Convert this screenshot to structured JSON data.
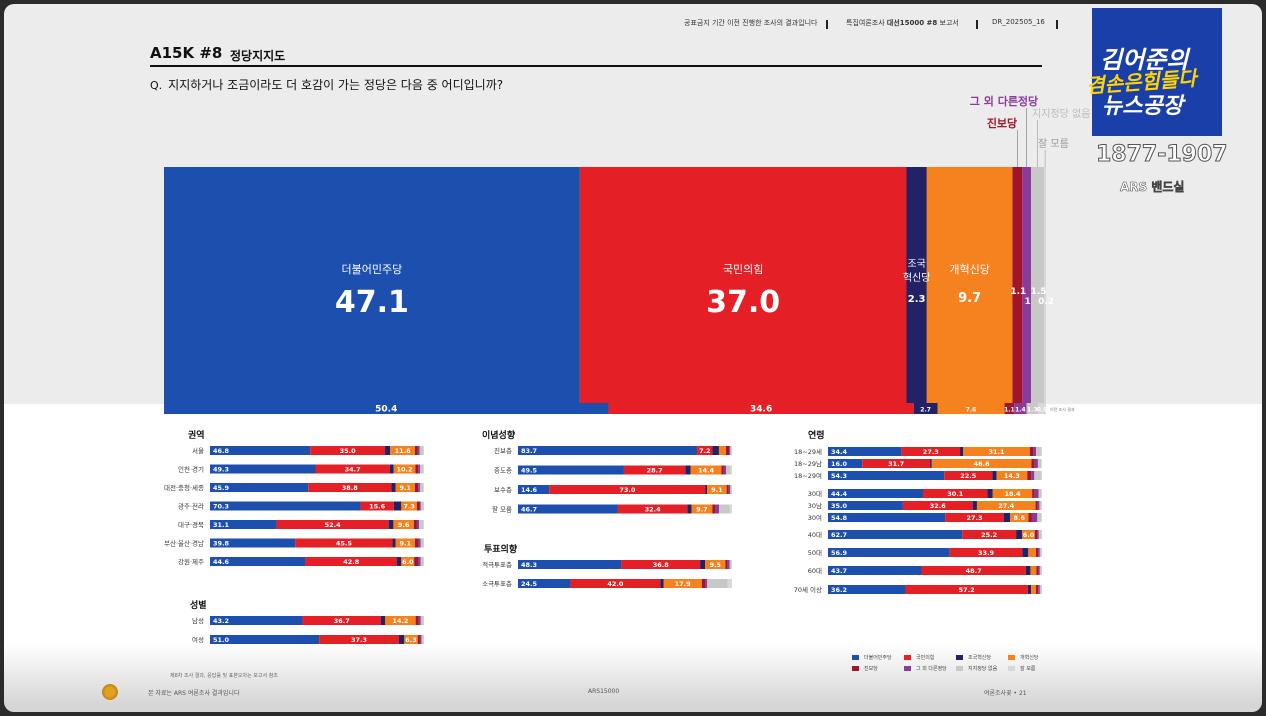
{
  "header": {
    "notice": "공표금지 기간 이전 진행한 조사의 결과입니다",
    "report_prefix": "특집여론조사 ",
    "report_name": "대선15000 #8",
    "report_suffix": " 보고서",
    "doc_id": "DR_202505_16"
  },
  "title": {
    "code": "A15K #8",
    "subject": "정당지지도"
  },
  "question": {
    "icon": "Q.",
    "text": "지지하거나 조금이라도 더 호감이 가는 정당은 다음 중 어디입니까?"
  },
  "colors": {
    "dem": "#1c4fae",
    "ppp": "#e41f26",
    "rebuild": "#222266",
    "reform": "#f5821f",
    "progressive": "#a1162a",
    "other": "#8b3a9a",
    "none": "#c8c8c8",
    "dk": "#d8d8d8"
  },
  "chart_data": [
    {
      "type": "bar",
      "subtype": "stacked-100",
      "series": [
        {
          "name": "더불어민주당",
          "value": 47.1,
          "color_key": "dem"
        },
        {
          "name": "국민의힘",
          "value": 37.0,
          "color_key": "ppp"
        },
        {
          "name": "조국혁신당",
          "value": 2.3,
          "color_key": "rebuild"
        },
        {
          "name": "개혁신당",
          "value": 9.7,
          "color_key": "reform"
        },
        {
          "name": "진보당",
          "value": 1.1,
          "color_key": "progressive"
        },
        {
          "name": "그 외 다른정당",
          "value": 1.0,
          "color_key": "other"
        },
        {
          "name": "지지정당 없음",
          "value": 1.5,
          "color_key": "none"
        },
        {
          "name": "잘 모름",
          "value": 0.2,
          "color_key": "dk"
        }
      ],
      "inside_labels": {
        "dem": "더불어민주당",
        "ppp": "국민의힘",
        "rebuild_1": "조국",
        "rebuild_2": "혁신당",
        "reform": "개혁신당"
      },
      "callouts": {
        "other": "그 외 다른정당",
        "progressive": "진보당",
        "none": "지지정당 없음",
        "dk": "잘 모름"
      }
    },
    {
      "type": "bar",
      "subtype": "stacked-100-comparison",
      "values": [
        50.4,
        34.6,
        2.7,
        7.6,
        1.1,
        1.4,
        1.3,
        0.9
      ],
      "labels": [
        "50.4",
        "34.6",
        "2.7",
        "7.6",
        "1.1",
        "1.4",
        "1.3",
        "0.9"
      ],
      "note": "이전 조사 결과"
    },
    {
      "type": "bar",
      "subtype": "stacked-100-small-multiples",
      "sections": [
        {
          "title": "권역",
          "rows": [
            {
              "label": "서울",
              "values": [
                46.8,
                35.0,
                2.4,
                11.6,
                1.2,
                1.0,
                1.5,
                0.5
              ]
            },
            {
              "label": "인천·경기",
              "values": [
                49.3,
                34.7,
                1.8,
                10.2,
                1.3,
                0.9,
                1.5,
                0.3
              ]
            },
            {
              "label": "대전·충청·세종",
              "values": [
                45.9,
                38.8,
                2.0,
                9.1,
                1.5,
                0.8,
                1.6,
                0.3
              ]
            },
            {
              "label": "광주·전라",
              "values": [
                70.3,
                15.6,
                3.5,
                7.3,
                1.2,
                0.6,
                1.3,
                0.2
              ]
            },
            {
              "label": "대구·경북",
              "values": [
                31.1,
                52.4,
                2.2,
                9.6,
                1.4,
                1.0,
                2.0,
                0.3
              ]
            },
            {
              "label": "부산·울산·경남",
              "values": [
                39.8,
                45.5,
                1.4,
                9.1,
                1.4,
                1.2,
                1.4,
                0.2
              ]
            },
            {
              "label": "강원·제주",
              "values": [
                44.6,
                42.8,
                2.0,
                6.0,
                1.8,
                1.2,
                1.5,
                0.1
              ]
            }
          ]
        },
        {
          "title": "성별",
          "rows": [
            {
              "label": "남성",
              "values": [
                43.2,
                36.7,
                2.0,
                14.2,
                1.3,
                1.1,
                1.3,
                0.2
              ]
            },
            {
              "label": "여성",
              "values": [
                51.0,
                37.3,
                2.5,
                6.3,
                1.0,
                0.7,
                1.0,
                0.2
              ]
            }
          ]
        },
        {
          "title": "이념성향",
          "rows": [
            {
              "label": "진보층",
              "values": [
                83.7,
                7.2,
                3.0,
                3.3,
                1.5,
                0.5,
                0.6,
                0.2
              ]
            },
            {
              "label": "중도층",
              "values": [
                49.5,
                28.7,
                2.5,
                14.4,
                1.1,
                1.0,
                2.2,
                0.6
              ]
            },
            {
              "label": "보수층",
              "values": [
                14.6,
                73.0,
                0.8,
                9.1,
                1.0,
                0.7,
                0.6,
                0.2
              ]
            },
            {
              "label": "잘 모름",
              "values": [
                46.7,
                32.4,
                2.0,
                9.7,
                1.6,
                1.6,
                5.0,
                1.0
              ]
            }
          ]
        },
        {
          "title": "투표의향",
          "rows": [
            {
              "label": "적극투표층",
              "values": [
                48.3,
                36.8,
                2.3,
                9.5,
                1.1,
                0.9,
                0.9,
                0.2
              ]
            },
            {
              "label": "소극투표층",
              "values": [
                24.5,
                42.0,
                1.5,
                17.9,
                1.5,
                1.0,
                9.6,
                2.0
              ]
            }
          ]
        },
        {
          "title": "연령",
          "rows": [
            {
              "label": "18~29세",
              "values": [
                34.4,
                27.3,
                1.5,
                31.1,
                1.5,
                1.4,
                2.3,
                0.5
              ]
            },
            {
              "label": "18~29남",
              "values": [
                16.0,
                31.7,
                0.8,
                46.6,
                1.5,
                1.5,
                1.5,
                0.4
              ]
            },
            {
              "label": "18~29여",
              "values": [
                54.3,
                22.5,
                2.0,
                14.3,
                1.8,
                1.5,
                2.9,
                0.7
              ]
            },
            {
              "label": "30대",
              "values": [
                44.4,
                30.1,
                2.5,
                18.4,
                1.2,
                1.8,
                1.3,
                0.3
              ]
            },
            {
              "label": "30남",
              "values": [
                35.0,
                32.6,
                2.0,
                27.4,
                1.0,
                0.8,
                1.0,
                0.2
              ]
            },
            {
              "label": "30여",
              "values": [
                54.8,
                27.3,
                3.0,
                8.6,
                1.6,
                2.5,
                1.8,
                0.4
              ]
            },
            {
              "label": "40대",
              "values": [
                62.7,
                25.2,
                2.8,
                6.0,
                1.0,
                0.8,
                1.3,
                0.2
              ]
            },
            {
              "label": "50대",
              "values": [
                56.9,
                33.9,
                2.8,
                3.6,
                1.0,
                0.8,
                0.8,
                0.2
              ]
            },
            {
              "label": "60대",
              "values": [
                43.7,
                48.7,
                2.2,
                2.8,
                1.0,
                0.6,
                0.8,
                0.2
              ]
            },
            {
              "label": "70세 이상",
              "values": [
                36.2,
                57.2,
                1.5,
                2.3,
                1.0,
                0.8,
                0.8,
                0.2
              ]
            }
          ]
        }
      ],
      "label_threshold": 5
    }
  ],
  "legend": [
    {
      "label": "더불어민주당",
      "color_key": "dem"
    },
    {
      "label": "국민의힘",
      "color_key": "ppp"
    },
    {
      "label": "조국혁신당",
      "color_key": "rebuild"
    },
    {
      "label": "개혁신당",
      "color_key": "reform"
    },
    {
      "label": "진보당",
      "color_key": "progressive"
    },
    {
      "label": "그 외 다른정당",
      "color_key": "other"
    },
    {
      "label": "지지정당 없음",
      "color_key": "none"
    },
    {
      "label": "잘 모름",
      "color_key": "dk"
    }
  ],
  "footnote": "제8차 조사 결과, 응답률 및 표본오차는 보고서 참조",
  "footer": {
    "left": "본 자료는 ARS 여론조사 결과입니다",
    "center": "ARS15000",
    "right": "여론조사꽃 • 21"
  },
  "overlay": {
    "name": "김어준의",
    "highlight": "겸손은힘들다",
    "show": "뉴스공장",
    "phone": "1877-1907",
    "ars": "ARS 밴드실"
  }
}
